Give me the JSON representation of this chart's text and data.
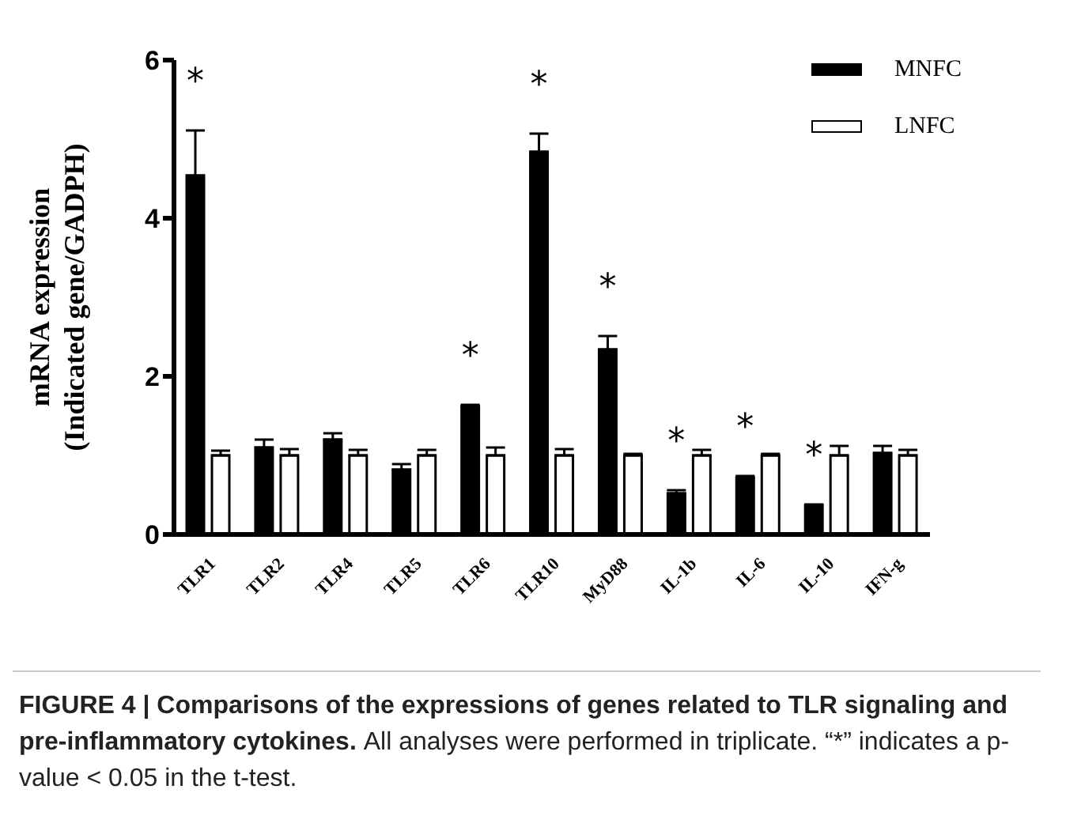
{
  "chart_data": {
    "type": "bar",
    "ylabel": "mRNA expression\n(Indicated gene/GADPH)",
    "categories": [
      "TLR1",
      "TLR2",
      "TLR4",
      "TLR5",
      "TLR6",
      "TLR10",
      "MyD88",
      "IL-1b",
      "IL-6",
      "IL-10",
      "IFN-g"
    ],
    "series": [
      {
        "name": "MNFC",
        "color": "#000000",
        "values": [
          4.54,
          1.1,
          1.2,
          0.82,
          1.62,
          4.84,
          2.34,
          0.52,
          0.72,
          0.37,
          1.03
        ],
        "errors": [
          0.57,
          0.1,
          0.08,
          0.07,
          0.02,
          0.23,
          0.17,
          0.04,
          0.02,
          0.01,
          0.09
        ],
        "value_labels": [
          "*",
          null,
          null,
          null,
          "*",
          "*",
          "*",
          "*",
          "*",
          "*",
          null
        ]
      },
      {
        "name": "LNFC",
        "color": "#ffffff",
        "values": [
          1.0,
          1.0,
          1.0,
          1.0,
          1.0,
          1.0,
          1.0,
          1.0,
          1.0,
          1.0,
          1.0
        ],
        "errors": [
          0.06,
          0.08,
          0.07,
          0.07,
          0.1,
          0.08,
          0.02,
          0.07,
          0.02,
          0.12,
          0.07
        ]
      }
    ],
    "ylim": [
      0,
      6
    ],
    "yticks": [
      0,
      2,
      4,
      6
    ],
    "legend": "top right",
    "annotations": [
      "FIGURE 4 | Comparisons of the expressions of genes related to TLR signaling and pre-inflammatory cytokines.",
      "All analyses were performed in triplicate. “*” indicates a p-value < 0.05 in the t-test."
    ]
  }
}
